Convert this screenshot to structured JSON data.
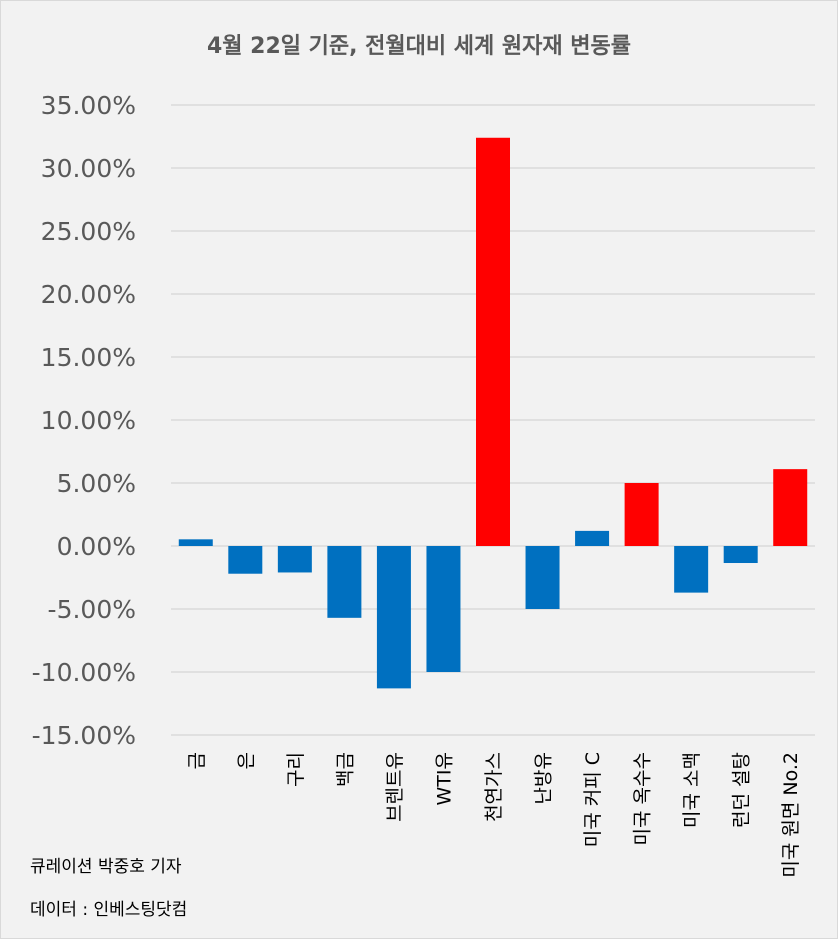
{
  "chart_data": {
    "type": "bar",
    "title": "4월 22일 기준, 전월대비 세계 원자재 변동률",
    "xlabel": "",
    "ylabel": "",
    "categories": [
      "금",
      "은",
      "구리",
      "백금",
      "브렌트유",
      "WTI유",
      "천연가스",
      "난방유",
      "미국 커피 C",
      "미국 옥수수",
      "미국 소맥",
      "런던 설탕",
      "미국 원면 No.2"
    ],
    "values": [
      0.53,
      -2.2,
      -2.1,
      -5.7,
      -11.3,
      -10.0,
      32.4,
      -5.0,
      1.2,
      5.0,
      -3.7,
      -1.35,
      6.1
    ],
    "highlighted": [
      false,
      false,
      false,
      false,
      false,
      false,
      true,
      false,
      false,
      true,
      false,
      false,
      true
    ],
    "ylim": [
      -15,
      35
    ],
    "yticks": [
      "35.00%",
      "30.00%",
      "25.00%",
      "20.00%",
      "15.00%",
      "10.00%",
      "5.00%",
      "0.00%",
      "-5.00%",
      "-10.00%",
      "-15.00%"
    ],
    "grid": true,
    "legend": "none",
    "colors": {
      "default": "#0070c0",
      "highlight": "#ff0000",
      "grid": "#d9d9d9",
      "background": "#f2f2f2"
    }
  },
  "footer": {
    "credit": "큐레이션 박중호 기자",
    "source": "데이터 : 인베스팅닷컴"
  }
}
